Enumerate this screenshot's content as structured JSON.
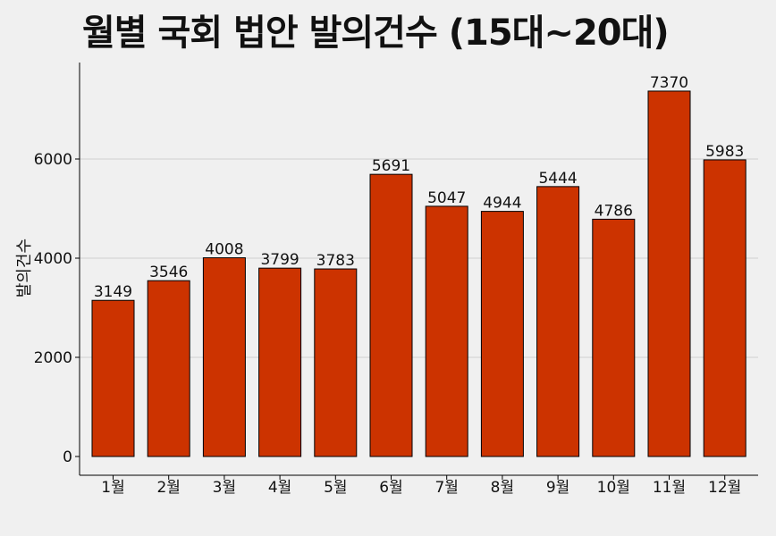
{
  "chart_data": {
    "type": "bar",
    "title": "월별 국회 법안 발의건수 (15대~20대)",
    "xlabel": "",
    "ylabel": "발의건수",
    "categories": [
      "1월",
      "2월",
      "3월",
      "4월",
      "5월",
      "6월",
      "7월",
      "8월",
      "9월",
      "10월",
      "11월",
      "12월"
    ],
    "values": [
      3149,
      3546,
      4008,
      3799,
      3783,
      5691,
      5047,
      4944,
      5444,
      4786,
      7370,
      5983
    ],
    "ylim": [
      0,
      7900
    ],
    "yticks": [
      0,
      2000,
      4000,
      6000
    ],
    "grid": true,
    "bar_color": "#cc3300",
    "bar_edge_color": "#000000",
    "background_color": "#f0f0f0"
  }
}
